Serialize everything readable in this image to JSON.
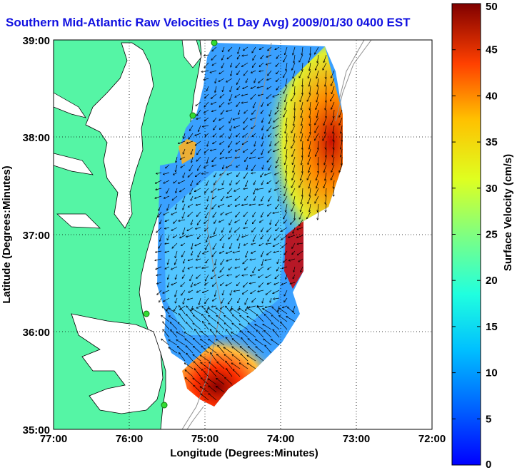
{
  "title": "Southern Mid-Atlantic Raw Velocities (1 Day Avg) 2009/01/30 0400 EST",
  "map": {
    "xlabel": "Longitude (Degrees:Minutes)",
    "ylabel": "Latitude (Degrees:Minutes)",
    "x_ticks": [
      "77:00",
      "76:00",
      "75:00",
      "74:00",
      "73:00",
      "72:00"
    ],
    "y_ticks": [
      "39:00",
      "38:00",
      "37:00",
      "36:00",
      "35:00"
    ],
    "lon_range": [
      -77,
      -72
    ],
    "lat_range": [
      35,
      39
    ],
    "grid": true
  },
  "colorbar": {
    "label": "Surface Velocity (cm/s)",
    "ticks": [
      "0",
      "5",
      "10",
      "15",
      "20",
      "25",
      "30",
      "35",
      "40",
      "45",
      "50"
    ],
    "range": [
      0,
      50
    ],
    "colormap": "jet"
  },
  "colors": {
    "land": "#55f5a5",
    "title": "#1010e0",
    "station": "#33dd33"
  }
}
